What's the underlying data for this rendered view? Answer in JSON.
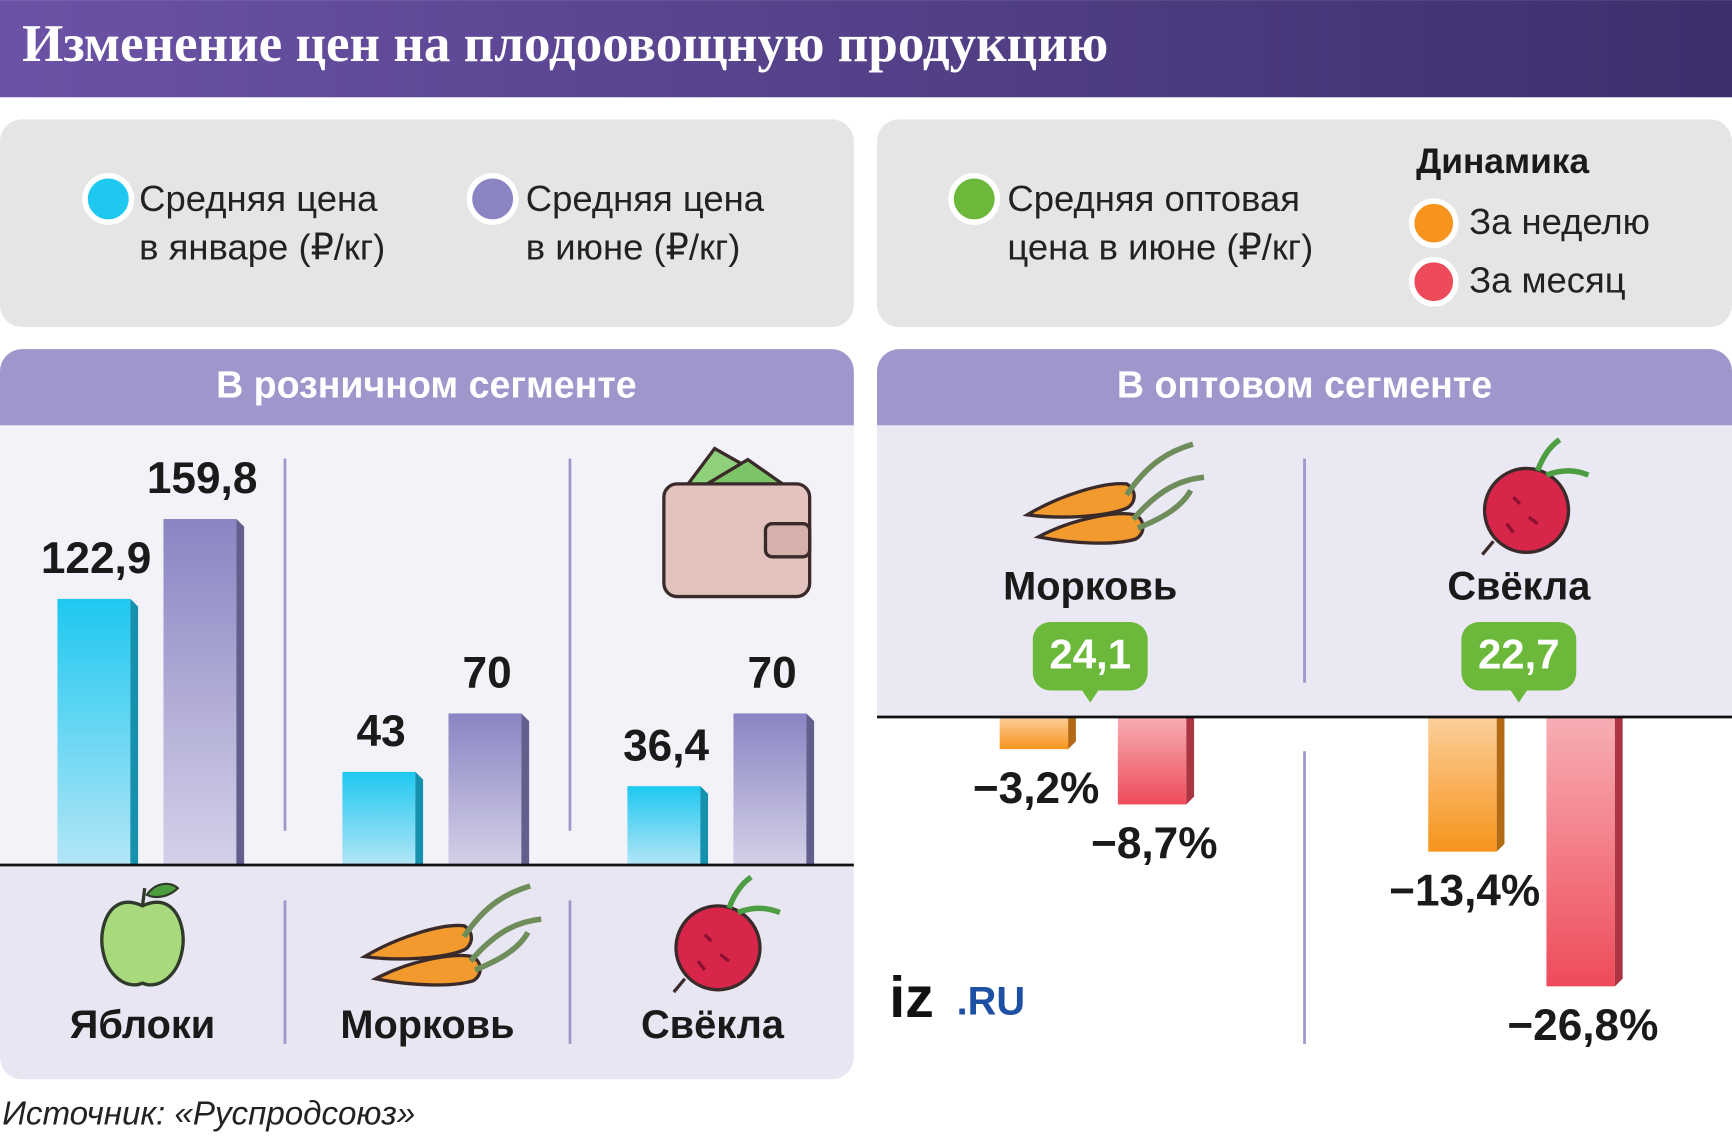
{
  "title": "Изменение цен на плодоовощную продукцию",
  "source": "Источник: «Руспродсоюз»",
  "logo": {
    "mark": "iz",
    "suffix": ".RU"
  },
  "chart_data": [
    {
      "type": "bar",
      "title": "В розничном сегменте",
      "categories": [
        "Яблоки",
        "Морковь",
        "Свёкла"
      ],
      "series": [
        {
          "name": "Средняя цена\nв январе (₽/кг)",
          "color": "#1ec8f0",
          "values": [
            122.9,
            43,
            36.4
          ],
          "value_labels": [
            "122,9",
            "43",
            "36,4"
          ]
        },
        {
          "name": "Средняя цена\nв июне (₽/кг)",
          "color": "#8a84c2",
          "values": [
            159.8,
            70,
            70
          ],
          "value_labels": [
            "159,8",
            "70",
            "70"
          ]
        }
      ]
    },
    {
      "type": "bar",
      "title": "В оптовом сегменте",
      "categories": [
        "Морковь",
        "Свёкла"
      ],
      "wholesale_price": {
        "name": "Средняя оптовая\nцена в июне (₽/кг)",
        "color": "#6cb83a",
        "values": [
          24.1,
          22.7
        ],
        "value_labels": [
          "24,1",
          "22,7"
        ]
      },
      "legend_title": "Динамика",
      "series": [
        {
          "name": "За неделю",
          "color": "#f7941d",
          "values": [
            -3.2,
            -13.4
          ],
          "value_labels": [
            "−3,2%",
            "−13,4%"
          ]
        },
        {
          "name": "За месяц",
          "color": "#ee4b5a",
          "values": [
            -8.7,
            -26.8
          ],
          "value_labels": [
            "−8,7%",
            "−26,8%"
          ]
        }
      ]
    }
  ]
}
